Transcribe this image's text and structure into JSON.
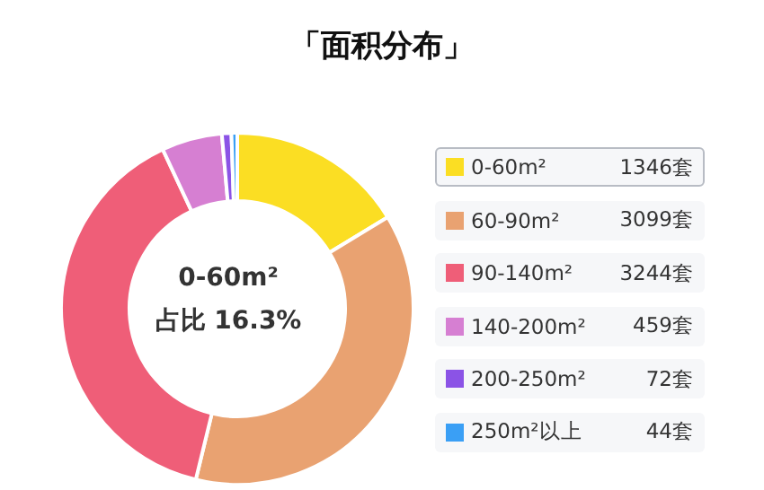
{
  "chart_data": {
    "type": "donut",
    "title": "「面积分布」",
    "categories": [
      "0-60m²",
      "60-90m²",
      "90-140m²",
      "140-200m²",
      "200-250m²",
      "250m²以上"
    ],
    "values": [
      1346,
      3099,
      3244,
      459,
      72,
      44
    ],
    "value_labels": [
      "1346套",
      "3099套",
      "3244套",
      "459套",
      "72套",
      "44套"
    ],
    "colors": [
      "#fbde23",
      "#e9a271",
      "#ef5e78",
      "#d67fd2",
      "#8b53e6",
      "#3a9ff5"
    ],
    "annotations": [
      "0-60m²",
      "占比 16.3%"
    ],
    "legend": "right"
  }
}
